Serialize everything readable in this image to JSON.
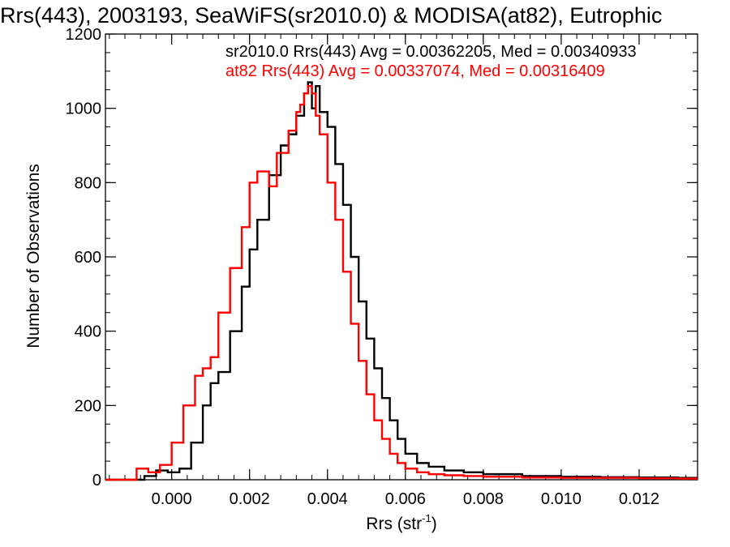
{
  "chart_data": {
    "type": "histogram",
    "title": "Rrs(443), 2003193, SeaWiFS(sr2010.0) & MODISA(at82), Eutrophic",
    "xlabel": "Rrs (str",
    "xlabel_sup": "-1",
    "xlabel_close": ")",
    "ylabel": "Number of Observations",
    "xlim": [
      -0.0017,
      0.0135
    ],
    "ylim": [
      0,
      1200
    ],
    "xticks": [
      0.0,
      0.002,
      0.004,
      0.006,
      0.008,
      0.01,
      0.012
    ],
    "xtick_labels": [
      "0.000",
      "0.002",
      "0.004",
      "0.006",
      "0.008",
      "0.010",
      "0.012"
    ],
    "yticks": [
      0,
      200,
      400,
      600,
      800,
      1000,
      1200
    ],
    "ytick_labels": [
      "0",
      "200",
      "400",
      "600",
      "800",
      "1000",
      "1200"
    ],
    "grid": false,
    "legend_position": "top-right",
    "series": [
      {
        "name": "sr2010.0",
        "color": "#000000",
        "legend": "sr2010.0 Rrs(443) Avg = 0.00362205, Med = 0.00340933",
        "x": [
          -0.0017,
          -0.001,
          -0.0007,
          -0.0004,
          -0.0001,
          0.0002,
          0.0005,
          0.0008,
          0.001,
          0.0012,
          0.0015,
          0.0018,
          0.002,
          0.0022,
          0.0025,
          0.0028,
          0.003,
          0.0032,
          0.0034,
          0.0035,
          0.0036,
          0.0037,
          0.0038,
          0.004,
          0.0042,
          0.0044,
          0.0046,
          0.0048,
          0.005,
          0.0052,
          0.0054,
          0.0056,
          0.0058,
          0.006,
          0.0063,
          0.0066,
          0.007,
          0.0075,
          0.008,
          0.009,
          0.01,
          0.011,
          0.012,
          0.013,
          0.0135
        ],
        "y": [
          0,
          0,
          10,
          25,
          20,
          30,
          100,
          200,
          260,
          290,
          400,
          520,
          620,
          700,
          820,
          900,
          930,
          980,
          1040,
          1070,
          1000,
          1060,
          990,
          950,
          850,
          740,
          600,
          480,
          380,
          300,
          220,
          160,
          110,
          70,
          45,
          35,
          25,
          20,
          15,
          10,
          8,
          7,
          6,
          5,
          5
        ]
      },
      {
        "name": "at82",
        "color": "#ff0000",
        "legend": "at82 Rrs(443) Avg = 0.00337074, Med = 0.00316409",
        "x": [
          -0.0017,
          -0.0012,
          -0.0009,
          -0.0006,
          -0.0003,
          0.0,
          0.0003,
          0.0006,
          0.0008,
          0.001,
          0.0012,
          0.0015,
          0.0018,
          0.002,
          0.0022,
          0.0025,
          0.0027,
          0.003,
          0.0032,
          0.0033,
          0.0034,
          0.0035,
          0.0036,
          0.0037,
          0.0038,
          0.004,
          0.0042,
          0.0044,
          0.0046,
          0.0048,
          0.005,
          0.0052,
          0.0054,
          0.0056,
          0.0058,
          0.006,
          0.0063,
          0.0066,
          0.007,
          0.0075,
          0.008,
          0.009,
          0.01,
          0.011,
          0.012,
          0.013,
          0.0135
        ],
        "y": [
          0,
          0,
          30,
          20,
          40,
          100,
          200,
          280,
          300,
          330,
          450,
          570,
          680,
          800,
          830,
          790,
          880,
          940,
          990,
          1010,
          1040,
          1060,
          1040,
          980,
          930,
          800,
          700,
          560,
          420,
          320,
          230,
          160,
          110,
          70,
          45,
          30,
          20,
          15,
          12,
          10,
          8,
          6,
          5,
          5,
          4,
          3,
          3
        ]
      }
    ]
  }
}
